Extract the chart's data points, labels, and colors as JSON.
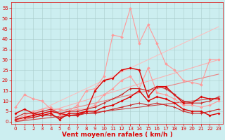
{
  "background_color": "#cceef0",
  "grid_color": "#aacccc",
  "xlabel": "Vent moyen/en rafales ( km/h )",
  "xlabel_color": "#dd0000",
  "xlabel_fontsize": 6.5,
  "xticks": [
    0,
    1,
    2,
    3,
    4,
    5,
    6,
    7,
    8,
    9,
    10,
    11,
    12,
    13,
    14,
    15,
    16,
    17,
    18,
    19,
    20,
    21,
    22,
    23
  ],
  "yticks": [
    0,
    5,
    10,
    15,
    20,
    25,
    30,
    35,
    40,
    45,
    50,
    55
  ],
  "ylim": [
    -1,
    58
  ],
  "xlim": [
    -0.5,
    23.5
  ],
  "tick_color": "#dd0000",
  "tick_fontsize": 5.0,
  "series": [
    {
      "x": [
        0,
        23
      ],
      "y": [
        0,
        46
      ],
      "color": "#ffbbbb",
      "lw": 0.8,
      "marker": null,
      "alpha": 0.9
    },
    {
      "x": [
        0,
        23
      ],
      "y": [
        0,
        30
      ],
      "color": "#ffaaaa",
      "lw": 0.8,
      "marker": null,
      "alpha": 0.9
    },
    {
      "x": [
        0,
        23
      ],
      "y": [
        0,
        23
      ],
      "color": "#ee7777",
      "lw": 0.8,
      "marker": null,
      "alpha": 0.9
    },
    {
      "x": [
        0,
        23
      ],
      "y": [
        0,
        11.5
      ],
      "color": "#cc3333",
      "lw": 0.8,
      "marker": null,
      "alpha": 0.9
    },
    {
      "x": [
        0,
        1,
        2,
        3,
        4,
        5,
        6,
        7,
        8,
        9,
        10,
        11,
        12,
        13,
        14,
        15,
        16,
        17,
        18,
        19,
        20,
        21,
        22,
        23
      ],
      "y": [
        7,
        13,
        11,
        10,
        6,
        6,
        5,
        8,
        15,
        16,
        22,
        42,
        41,
        55,
        38,
        47,
        38,
        28,
        25,
        20,
        19,
        18,
        30,
        30
      ],
      "color": "#ff9999",
      "lw": 0.8,
      "marker": "D",
      "ms": 1.8,
      "alpha": 1.0
    },
    {
      "x": [
        0,
        1,
        2,
        3,
        4,
        5,
        6,
        7,
        8,
        9,
        10,
        11,
        12,
        13,
        14,
        15,
        16,
        17,
        18,
        19,
        20,
        21,
        22,
        23
      ],
      "y": [
        1,
        3,
        5,
        6,
        7,
        3,
        5,
        6,
        6,
        8,
        13,
        16,
        20,
        22,
        16,
        26,
        14,
        13,
        11,
        8,
        8,
        7,
        8,
        10
      ],
      "color": "#ff9999",
      "lw": 0.8,
      "marker": "D",
      "ms": 1.8,
      "alpha": 1.0
    },
    {
      "x": [
        0,
        1,
        2,
        3,
        4,
        5,
        6,
        7,
        8,
        9,
        10,
        11,
        12,
        13,
        14,
        15,
        16,
        17,
        18,
        19,
        20,
        21,
        22,
        23
      ],
      "y": [
        4,
        6,
        4,
        3,
        4,
        1,
        4,
        4,
        5,
        15,
        20,
        21,
        25,
        26,
        25,
        12,
        17,
        17,
        13,
        9,
        9,
        12,
        11,
        11
      ],
      "color": "#dd0000",
      "lw": 1.0,
      "marker": "P",
      "ms": 2.0,
      "alpha": 1.0
    },
    {
      "x": [
        0,
        1,
        2,
        3,
        4,
        5,
        6,
        7,
        8,
        9,
        10,
        11,
        12,
        13,
        14,
        15,
        16,
        17,
        18,
        19,
        20,
        21,
        22,
        23
      ],
      "y": [
        1,
        2,
        3,
        4,
        5,
        4,
        3,
        3,
        5,
        5,
        7,
        8,
        10,
        12,
        15,
        10,
        12,
        11,
        9,
        6,
        5,
        5,
        3,
        4
      ],
      "color": "#dd0000",
      "lw": 1.0,
      "marker": "P",
      "ms": 2.0,
      "alpha": 1.0
    },
    {
      "x": [
        0,
        1,
        2,
        3,
        4,
        5,
        6,
        7,
        8,
        9,
        10,
        11,
        12,
        13,
        14,
        15,
        16,
        17,
        18,
        19,
        20,
        21,
        22,
        23
      ],
      "y": [
        2,
        4,
        4,
        5,
        6,
        4,
        5,
        5,
        6,
        7,
        9,
        11,
        13,
        16,
        16,
        15,
        17,
        16,
        13,
        10,
        9,
        9,
        10,
        12
      ],
      "color": "#cc2222",
      "lw": 0.8,
      "marker": "+",
      "ms": 2.5,
      "alpha": 1.0
    },
    {
      "x": [
        0,
        1,
        2,
        3,
        4,
        5,
        6,
        7,
        8,
        9,
        10,
        11,
        12,
        13,
        14,
        15,
        16,
        17,
        18,
        19,
        20,
        21,
        22,
        23
      ],
      "y": [
        1,
        2,
        2,
        3,
        3,
        2,
        3,
        3,
        4,
        4,
        5,
        6,
        7,
        8,
        9,
        8,
        9,
        8,
        7,
        5,
        4,
        4,
        5,
        6
      ],
      "color": "#cc2222",
      "lw": 0.8,
      "marker": "+",
      "ms": 2.5,
      "alpha": 1.0
    }
  ]
}
